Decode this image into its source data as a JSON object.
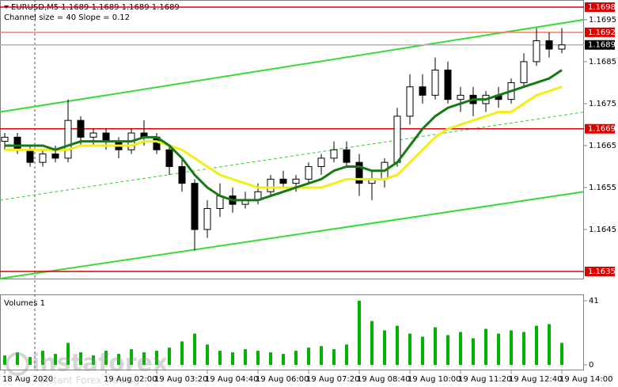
{
  "chart_data": [
    {
      "type": "candlestick",
      "title": "EURUSD,M5  1.1689 1.1689 1.1689 1.1689",
      "subtitle": "Channel size = 40  Slope = 0.12",
      "categories": [
        "18 Aug 2020",
        null,
        null,
        null,
        null,
        null,
        null,
        null,
        "19 Aug 02:00",
        null,
        null,
        null,
        "19 Aug 03:20",
        null,
        null,
        null,
        "19 Aug 04:40",
        null,
        null,
        null,
        "19 Aug 06:00",
        null,
        null,
        null,
        "19 Aug 07:20",
        null,
        null,
        null,
        "19 Aug 08:40",
        null,
        null,
        null,
        "19 Aug 10:00",
        null,
        null,
        null,
        "19 Aug 11:20",
        null,
        null,
        null,
        "19 Aug 12:40",
        null,
        null,
        null,
        "19 Aug 14:00"
      ],
      "open": [
        1.1666,
        1.1667,
        1.1664,
        1.1661,
        1.1663,
        1.1662,
        1.1671,
        1.1667,
        1.1668,
        1.1666,
        1.1664,
        1.1668,
        1.1667,
        1.1664,
        1.166,
        1.1656,
        1.1645,
        1.165,
        1.1653,
        1.1651,
        1.1652,
        1.1654,
        1.1657,
        1.1656,
        1.1657,
        1.166,
        1.1662,
        1.1664,
        1.1661,
        1.1656,
        1.1657,
        1.1661,
        1.1672,
        1.1679,
        1.1677,
        1.1683,
        1.1676,
        1.1677,
        1.1675,
        1.1677,
        1.1676,
        1.168,
        1.1685,
        1.169,
        1.1688
      ],
      "high": [
        1.1668,
        1.1668,
        1.1665,
        1.1664,
        1.1665,
        1.1676,
        1.1672,
        1.1669,
        1.1669,
        1.1667,
        1.1669,
        1.1671,
        1.1668,
        1.1665,
        1.1662,
        1.1657,
        1.1652,
        1.1656,
        1.1655,
        1.1654,
        1.1656,
        1.1658,
        1.1659,
        1.1658,
        1.1661,
        1.1663,
        1.1666,
        1.1666,
        1.1663,
        1.1659,
        1.1662,
        1.1674,
        1.1682,
        1.1682,
        1.1686,
        1.1685,
        1.1679,
        1.1679,
        1.1678,
        1.1679,
        1.1681,
        1.1687,
        1.1693,
        1.1692,
        1.1693
      ],
      "low": [
        1.1664,
        1.1663,
        1.166,
        1.166,
        1.1661,
        1.1661,
        1.1665,
        1.1665,
        1.1664,
        1.1662,
        1.1663,
        1.1665,
        1.1663,
        1.1658,
        1.1654,
        1.164,
        1.1643,
        1.1648,
        1.1649,
        1.165,
        1.1651,
        1.1653,
        1.1655,
        1.1654,
        1.1656,
        1.1658,
        1.1661,
        1.166,
        1.1653,
        1.1652,
        1.1655,
        1.166,
        1.167,
        1.1675,
        1.1676,
        1.1675,
        1.1673,
        1.1672,
        1.1673,
        1.1674,
        1.1675,
        1.1679,
        1.1684,
        1.1686,
        1.1687
      ],
      "close": [
        1.1667,
        1.1664,
        1.1661,
        1.1663,
        1.1662,
        1.1671,
        1.1667,
        1.1668,
        1.1666,
        1.1664,
        1.1668,
        1.1667,
        1.1664,
        1.166,
        1.1656,
        1.1645,
        1.165,
        1.1653,
        1.1651,
        1.1652,
        1.1654,
        1.1657,
        1.1656,
        1.1657,
        1.166,
        1.1662,
        1.1664,
        1.1661,
        1.1656,
        1.1657,
        1.1661,
        1.1672,
        1.1679,
        1.1677,
        1.1683,
        1.1676,
        1.1677,
        1.1675,
        1.1677,
        1.1676,
        1.168,
        1.1685,
        1.169,
        1.1688,
        1.1689
      ],
      "up_color": "#ffffff",
      "down_color": "#000000",
      "edge_color": "#000000",
      "moving_averages": [
        {
          "color": "#f2ee1a",
          "values": [
            1.1664,
            1.1664,
            1.1664,
            1.1664,
            1.1664,
            1.1664,
            1.1665,
            1.1665,
            1.1665,
            1.1665,
            1.1665,
            1.1666,
            1.1666,
            1.1665,
            1.1664,
            1.1662,
            1.166,
            1.1658,
            1.1657,
            1.1656,
            1.1655,
            1.1655,
            1.1655,
            1.1655,
            1.1655,
            1.1655,
            1.1656,
            1.1657,
            1.1657,
            1.1657,
            1.1657,
            1.1658,
            1.1661,
            1.1664,
            1.1667,
            1.1669,
            1.167,
            1.1671,
            1.1672,
            1.1673,
            1.1673,
            1.1675,
            1.1677,
            1.1678,
            1.1679
          ]
        },
        {
          "color": "#157a15",
          "values": [
            1.1665,
            1.1665,
            1.1665,
            1.1665,
            1.1664,
            1.1665,
            1.1666,
            1.1666,
            1.1666,
            1.1666,
            1.1666,
            1.1667,
            1.1667,
            1.1665,
            1.1662,
            1.1658,
            1.1655,
            1.1653,
            1.1652,
            1.1652,
            1.1652,
            1.1653,
            1.1654,
            1.1655,
            1.1656,
            1.1657,
            1.1659,
            1.166,
            1.166,
            1.1659,
            1.1659,
            1.1661,
            1.1665,
            1.1669,
            1.1672,
            1.1674,
            1.1675,
            1.1676,
            1.1676,
            1.1677,
            1.1678,
            1.1679,
            1.168,
            1.1681,
            1.1683
          ]
        }
      ],
      "channel": [
        {
          "color": "#33dd33",
          "width": 2,
          "values": [
            1.1673,
            1.1695
          ]
        },
        {
          "color": "#33dd33",
          "width": 2,
          "values": [
            1.16333,
            1.1654
          ]
        },
        {
          "color": "#33cc33",
          "width": 1,
          "dashed": true,
          "values": [
            1.1652,
            1.1673
          ]
        }
      ],
      "levels": [
        {
          "value": 1.1698,
          "color": "#dd0000",
          "label_color": "#dd0000"
        },
        {
          "value": 1.1692,
          "color": "#f08060",
          "label_color": "#dd0000"
        },
        {
          "value": 1.1689,
          "color": "#b0b0b0",
          "label_color": "#000000"
        },
        {
          "value": 1.1669,
          "color": "#dd0000",
          "label_color": "#dd0000"
        },
        {
          "value": 1.1635,
          "color": "#dd0000",
          "label_color": "#dd0000"
        }
      ],
      "ylim": [
        1.16333,
        1.16997
      ],
      "yticks": [
        1.1695,
        1.1685,
        1.1675,
        1.1665,
        1.1655,
        1.1645
      ]
    },
    {
      "type": "bar",
      "title": "Volumes 1",
      "color": "#00b400",
      "values": [
        6,
        8,
        5,
        9,
        7,
        14,
        8,
        6,
        9,
        7,
        10,
        8,
        9,
        11,
        15,
        20,
        13,
        9,
        8,
        10,
        9,
        8,
        7,
        9,
        11,
        12,
        10,
        13,
        41,
        28,
        22,
        25,
        20,
        18,
        24,
        19,
        21,
        17,
        23,
        20,
        22,
        21,
        25,
        26,
        14
      ],
      "ylim": [
        0,
        43
      ],
      "yticks": [
        0,
        41
      ]
    }
  ],
  "watermark": {
    "brand": "instaforex",
    "tagline": "Instant Forex Trading"
  }
}
